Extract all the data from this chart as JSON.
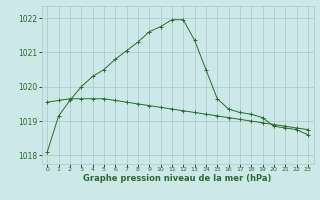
{
  "main_x": [
    0,
    1,
    2,
    3,
    4,
    5,
    6,
    7,
    8,
    9,
    10,
    11,
    12,
    13,
    14,
    15,
    16,
    17,
    18,
    19,
    20,
    21,
    22,
    23
  ],
  "main_y": [
    1018.1,
    1019.15,
    1019.6,
    1020.0,
    1020.3,
    1020.5,
    1020.8,
    1021.05,
    1021.3,
    1021.6,
    1021.75,
    1021.95,
    1021.95,
    1021.35,
    1020.5,
    1019.65,
    1019.35,
    1019.25,
    1019.2,
    1019.1,
    1018.85,
    1018.8,
    1018.75,
    1018.6
  ],
  "flat_x": [
    0,
    1,
    2,
    3,
    4,
    5,
    6,
    7,
    8,
    9,
    10,
    11,
    12,
    13,
    14,
    15,
    16,
    17,
    18,
    19,
    20,
    21,
    22,
    23
  ],
  "flat_y": [
    1019.55,
    1019.6,
    1019.65,
    1019.65,
    1019.65,
    1019.65,
    1019.6,
    1019.55,
    1019.5,
    1019.45,
    1019.4,
    1019.35,
    1019.3,
    1019.25,
    1019.2,
    1019.15,
    1019.1,
    1019.05,
    1019.0,
    1018.95,
    1018.9,
    1018.85,
    1018.8,
    1018.75
  ],
  "line_color": "#2d6a2d",
  "bg_color": "#cce8e8",
  "grid_color": "#aac8c8",
  "xlabel": "Graphe pression niveau de la mer (hPa)",
  "yticks": [
    1018,
    1019,
    1020,
    1021,
    1022
  ],
  "xticks": [
    0,
    1,
    2,
    3,
    4,
    5,
    6,
    7,
    8,
    9,
    10,
    11,
    12,
    13,
    14,
    15,
    16,
    17,
    18,
    19,
    20,
    21,
    22,
    23
  ],
  "ylim": [
    1017.75,
    1022.35
  ],
  "xlim": [
    -0.5,
    23.5
  ]
}
